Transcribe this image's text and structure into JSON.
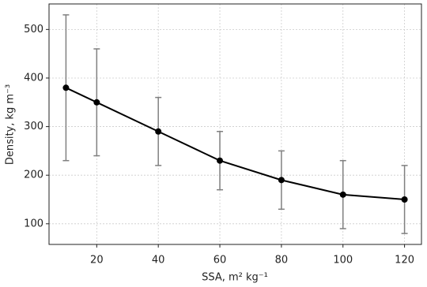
{
  "chart_data": {
    "type": "line",
    "xlabel": "SSA, m² kg⁻¹",
    "ylabel": "Density, kg m⁻³",
    "x": [
      10,
      20,
      40,
      60,
      80,
      100,
      120
    ],
    "series": [
      {
        "color": "#000000",
        "error_color": "#808080",
        "values": [
          380,
          350,
          290,
          230,
          190,
          160,
          150
        ],
        "errors": [
          150,
          110,
          70,
          60,
          60,
          70,
          70
        ]
      }
    ],
    "xlim": [
      4.5,
      125.5
    ],
    "ylim": [
      57.5,
      552.5
    ],
    "xticks": [
      20,
      40,
      60,
      80,
      100,
      120
    ],
    "yticks": [
      100,
      200,
      300,
      400,
      500
    ],
    "grid": true
  }
}
